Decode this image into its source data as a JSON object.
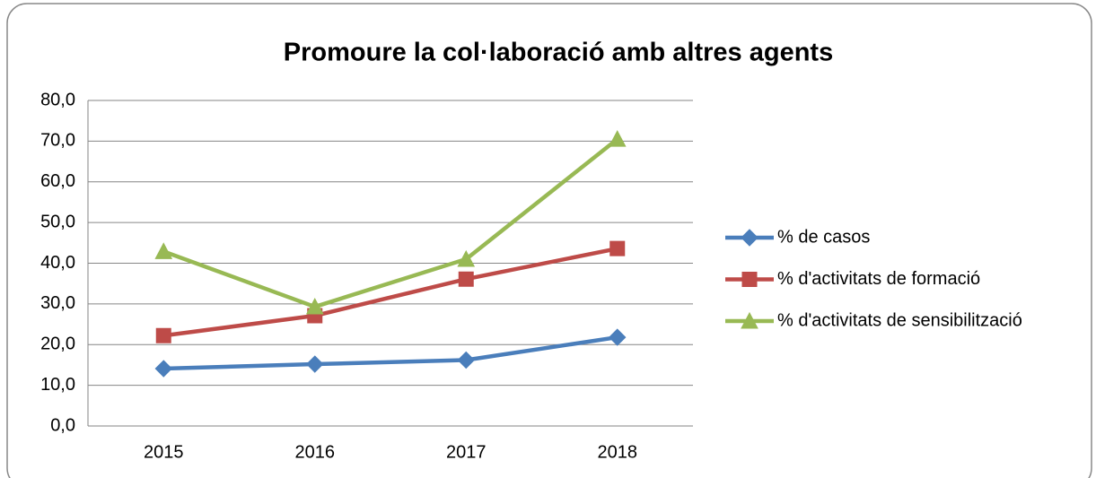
{
  "chart_data": {
    "type": "line",
    "title": "Promoure la col·laboració amb altres agents",
    "categories": [
      "2015",
      "2016",
      "2017",
      "2018"
    ],
    "series": [
      {
        "name": "% de casos",
        "color": "#4a7ebb",
        "marker": "diamond",
        "values": [
          14.1,
          15.2,
          16.2,
          21.8
        ]
      },
      {
        "name": "% d'activitats de formació",
        "color": "#be4b48",
        "marker": "square",
        "values": [
          22.2,
          27.1,
          36.1,
          43.6
        ]
      },
      {
        "name": "% d'activitats de sensibilització",
        "color": "#98b954",
        "marker": "triangle",
        "values": [
          42.9,
          29.3,
          41.0,
          70.5
        ]
      }
    ],
    "ylim": [
      0,
      80
    ],
    "yticks": [
      {
        "value": 0,
        "label": "0,0"
      },
      {
        "value": 10,
        "label": "10,0"
      },
      {
        "value": 20,
        "label": "20,0"
      },
      {
        "value": 30,
        "label": "30,0"
      },
      {
        "value": 40,
        "label": "40,0"
      },
      {
        "value": 50,
        "label": "50,0"
      },
      {
        "value": 60,
        "label": "60,0"
      },
      {
        "value": 70,
        "label": "70,0"
      },
      {
        "value": 80,
        "label": "80,0"
      }
    ],
    "grid": true,
    "legend": "right"
  }
}
